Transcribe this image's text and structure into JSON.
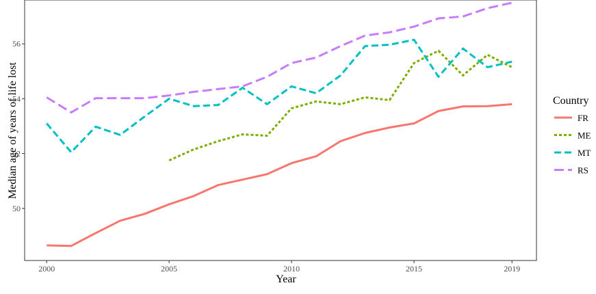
{
  "chart_data": {
    "type": "line",
    "title": "",
    "xlabel": "Year",
    "ylabel": "Median age of years of life lost",
    "xlim": [
      1999.1,
      2020.0
    ],
    "ylim": [
      48.1,
      57.6
    ],
    "x_ticks": [
      2000,
      2005,
      2010,
      2015,
      2019
    ],
    "y_ticks": [
      50,
      52,
      54,
      56
    ],
    "grid": false,
    "legend": {
      "title": "Country",
      "position": "right"
    },
    "colors": {
      "FR": "#F8766D",
      "ME": "#7CAE00",
      "MT": "#00BFC4",
      "RS": "#C77CFF"
    },
    "series": [
      {
        "name": "FR",
        "dash": "solid",
        "x": [
          2000,
          2001,
          2002,
          2003,
          2004,
          2005,
          2006,
          2007,
          2008,
          2009,
          2010,
          2011,
          2012,
          2013,
          2014,
          2015,
          2016,
          2017,
          2018,
          2019
        ],
        "values": [
          48.65,
          48.63,
          49.1,
          49.55,
          49.8,
          50.15,
          50.45,
          50.85,
          51.05,
          51.25,
          51.65,
          51.9,
          52.45,
          52.75,
          52.95,
          53.1,
          53.55,
          53.72,
          53.73,
          53.8
        ]
      },
      {
        "name": "ME",
        "dash": "dotted",
        "x": [
          2005,
          2006,
          2007,
          2008,
          2009,
          2010,
          2011,
          2012,
          2013,
          2014,
          2015,
          2016,
          2017,
          2018,
          2019
        ],
        "values": [
          51.75,
          52.15,
          52.45,
          52.7,
          52.65,
          53.65,
          53.9,
          53.8,
          54.05,
          53.95,
          55.3,
          55.75,
          54.85,
          55.6,
          55.15
        ]
      },
      {
        "name": "MT",
        "dash": "dashed",
        "x": [
          2000,
          2001,
          2002,
          2003,
          2004,
          2005,
          2006,
          2007,
          2008,
          2009,
          2010,
          2011,
          2012,
          2013,
          2014,
          2015,
          2016,
          2017,
          2018,
          2019
        ],
        "values": [
          53.1,
          52.05,
          52.98,
          52.68,
          53.35,
          54.0,
          53.73,
          53.77,
          54.4,
          53.8,
          54.45,
          54.2,
          54.85,
          55.92,
          55.97,
          56.15,
          54.8,
          55.83,
          55.15,
          55.35
        ]
      },
      {
        "name": "RS",
        "dash": "longdash",
        "x": [
          2000,
          2001,
          2002,
          2003,
          2004,
          2005,
          2006,
          2007,
          2008,
          2009,
          2010,
          2011,
          2012,
          2013,
          2014,
          2015,
          2016,
          2017,
          2018,
          2019
        ],
        "values": [
          54.05,
          53.5,
          54.02,
          54.02,
          54.02,
          54.12,
          54.25,
          54.35,
          54.45,
          54.8,
          55.3,
          55.5,
          55.92,
          56.3,
          56.42,
          56.63,
          56.93,
          57.0,
          57.3,
          57.5
        ]
      }
    ]
  }
}
